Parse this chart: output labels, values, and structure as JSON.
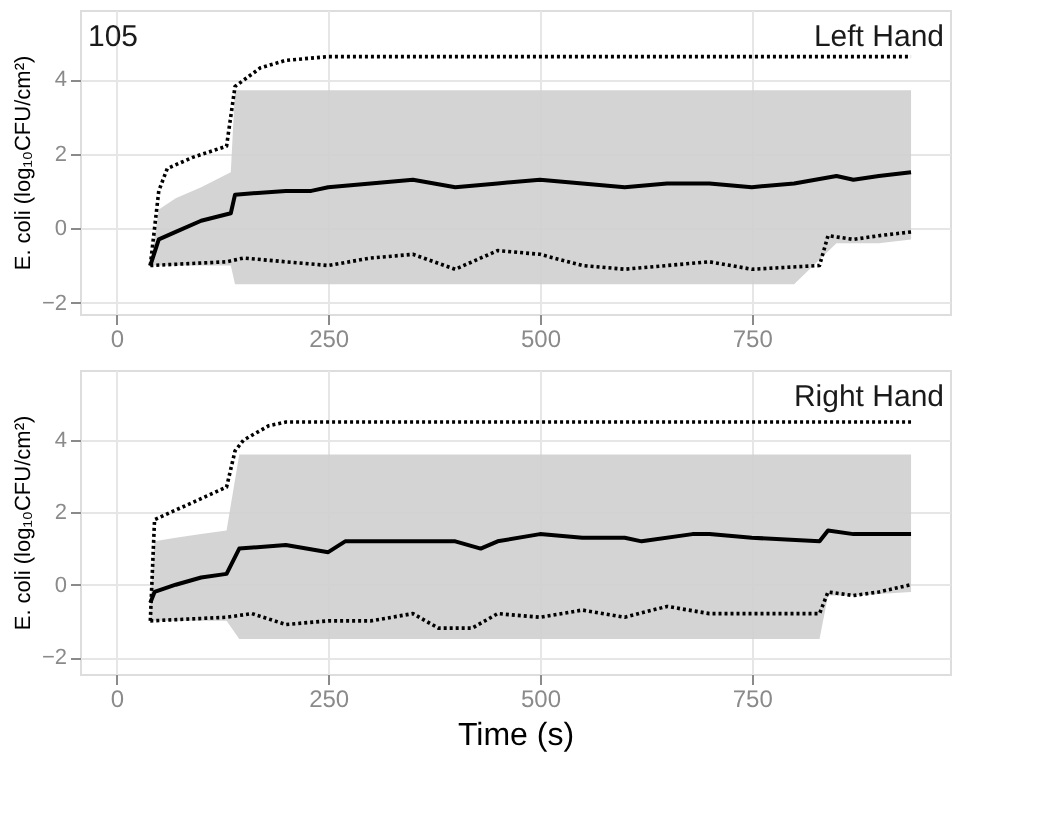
{
  "chart_data": [
    {
      "type": "line",
      "ylabel": "E. coli (log₁₀CFU/cm²)",
      "xlim": [
        -43,
        984
      ],
      "xticks": [
        0,
        250,
        500,
        750
      ],
      "ylim": [
        -2.3,
        5.85
      ],
      "yticks": [
        -2,
        0,
        2,
        4
      ],
      "grid": true,
      "annotations": [
        "105",
        "Left Hand"
      ],
      "series": [
        {
          "color": "#000000",
          "line_style": "solid",
          "x": [
            40,
            50,
            70,
            100,
            135,
            140,
            200,
            230,
            250,
            300,
            350,
            400,
            450,
            500,
            550,
            600,
            650,
            700,
            750,
            800,
            850,
            870,
            900,
            938
          ],
          "values": [
            -1,
            -0.3,
            -0.1,
            0.2,
            0.4,
            0.9,
            1.0,
            1.0,
            1.1,
            1.2,
            1.3,
            1.1,
            1.2,
            1.3,
            1.2,
            1.1,
            1.2,
            1.2,
            1.1,
            1.2,
            1.4,
            1.3,
            1.4,
            1.5
          ],
          "lower": [
            -1,
            -1,
            -1,
            -1,
            -1,
            -1.5,
            -1.5,
            -1.5,
            -1.5,
            -1.5,
            -1.5,
            -1.5,
            -1.5,
            -1.5,
            -1.5,
            -1.5,
            -1.5,
            -1.5,
            -1.5,
            -1.5,
            -0.4,
            -0.4,
            -0.4,
            -0.3
          ],
          "upper": [
            -1,
            0.5,
            0.8,
            1.1,
            1.5,
            3.7,
            3.7,
            3.7,
            3.7,
            3.7,
            3.7,
            3.7,
            3.7,
            3.7,
            3.7,
            3.7,
            3.7,
            3.7,
            3.7,
            3.7,
            3.7,
            3.7,
            3.7,
            3.7
          ]
        },
        {
          "color": "#000000",
          "line_style": "dotted",
          "x": [
            40,
            50,
            60,
            90,
            130,
            140,
            170,
            200,
            250,
            500,
            750,
            938
          ],
          "values": [
            -1,
            1.0,
            1.6,
            1.9,
            2.2,
            3.8,
            4.3,
            4.5,
            4.6,
            4.6,
            4.6,
            4.6
          ]
        },
        {
          "color": "#000000",
          "line_style": "dotted",
          "x": [
            40,
            130,
            150,
            200,
            250,
            300,
            350,
            400,
            450,
            500,
            550,
            600,
            650,
            700,
            750,
            830,
            840,
            870,
            900,
            938
          ],
          "values": [
            -1,
            -0.9,
            -0.8,
            -0.9,
            -1.0,
            -0.8,
            -0.7,
            -1.1,
            -0.6,
            -0.7,
            -1.0,
            -1.1,
            -1.0,
            -0.9,
            -1.1,
            -1.0,
            -0.2,
            -0.3,
            -0.2,
            -0.1
          ]
        }
      ]
    },
    {
      "type": "line",
      "xlabel": "Time (s)",
      "ylabel": "E. coli (log₁₀CFU/cm²)",
      "xlim": [
        -43,
        984
      ],
      "xticks": [
        0,
        250,
        500,
        750
      ],
      "ylim": [
        -2.47,
        5.94
      ],
      "yticks": [
        -2,
        0,
        2,
        4
      ],
      "grid": true,
      "annotations": [
        "Right Hand"
      ],
      "series": [
        {
          "color": "#000000",
          "line_style": "solid",
          "x": [
            40,
            45,
            70,
            100,
            130,
            145,
            200,
            250,
            270,
            350,
            400,
            430,
            450,
            500,
            550,
            600,
            620,
            680,
            700,
            750,
            830,
            840,
            870,
            938
          ],
          "values": [
            -0.5,
            -0.2,
            0.0,
            0.2,
            0.3,
            1.0,
            1.1,
            0.9,
            1.2,
            1.2,
            1.2,
            1.0,
            1.2,
            1.4,
            1.3,
            1.3,
            1.2,
            1.4,
            1.4,
            1.3,
            1.2,
            1.5,
            1.4,
            1.4
          ],
          "lower": [
            -1,
            -1,
            -1,
            -1,
            -1,
            -1.5,
            -1.5,
            -1.5,
            -1.5,
            -1.5,
            -1.5,
            -1.5,
            -1.5,
            -1.5,
            -1.5,
            -1.5,
            -1.5,
            -1.5,
            -1.5,
            -1.5,
            -1.5,
            -0.3,
            -0.3,
            -0.2
          ],
          "upper": [
            -0.5,
            1.2,
            1.3,
            1.4,
            1.5,
            3.6,
            3.6,
            3.6,
            3.6,
            3.6,
            3.6,
            3.6,
            3.6,
            3.6,
            3.6,
            3.6,
            3.6,
            3.6,
            3.6,
            3.6,
            3.6,
            3.6,
            3.6,
            3.6
          ]
        },
        {
          "color": "#000000",
          "line_style": "dotted",
          "x": [
            40,
            45,
            130,
            140,
            150,
            180,
            200,
            938
          ],
          "values": [
            -1,
            1.8,
            2.7,
            3.7,
            4.0,
            4.4,
            4.5,
            4.5
          ]
        },
        {
          "color": "#000000",
          "line_style": "dotted",
          "x": [
            40,
            130,
            160,
            200,
            250,
            300,
            350,
            380,
            420,
            450,
            500,
            550,
            600,
            650,
            700,
            830,
            840,
            870,
            900,
            938
          ],
          "values": [
            -1,
            -0.9,
            -0.8,
            -1.1,
            -1.0,
            -1.0,
            -0.8,
            -1.2,
            -1.2,
            -0.8,
            -0.9,
            -0.7,
            -0.9,
            -0.6,
            -0.8,
            -0.8,
            -0.2,
            -0.3,
            -0.2,
            0.0
          ]
        }
      ]
    }
  ]
}
